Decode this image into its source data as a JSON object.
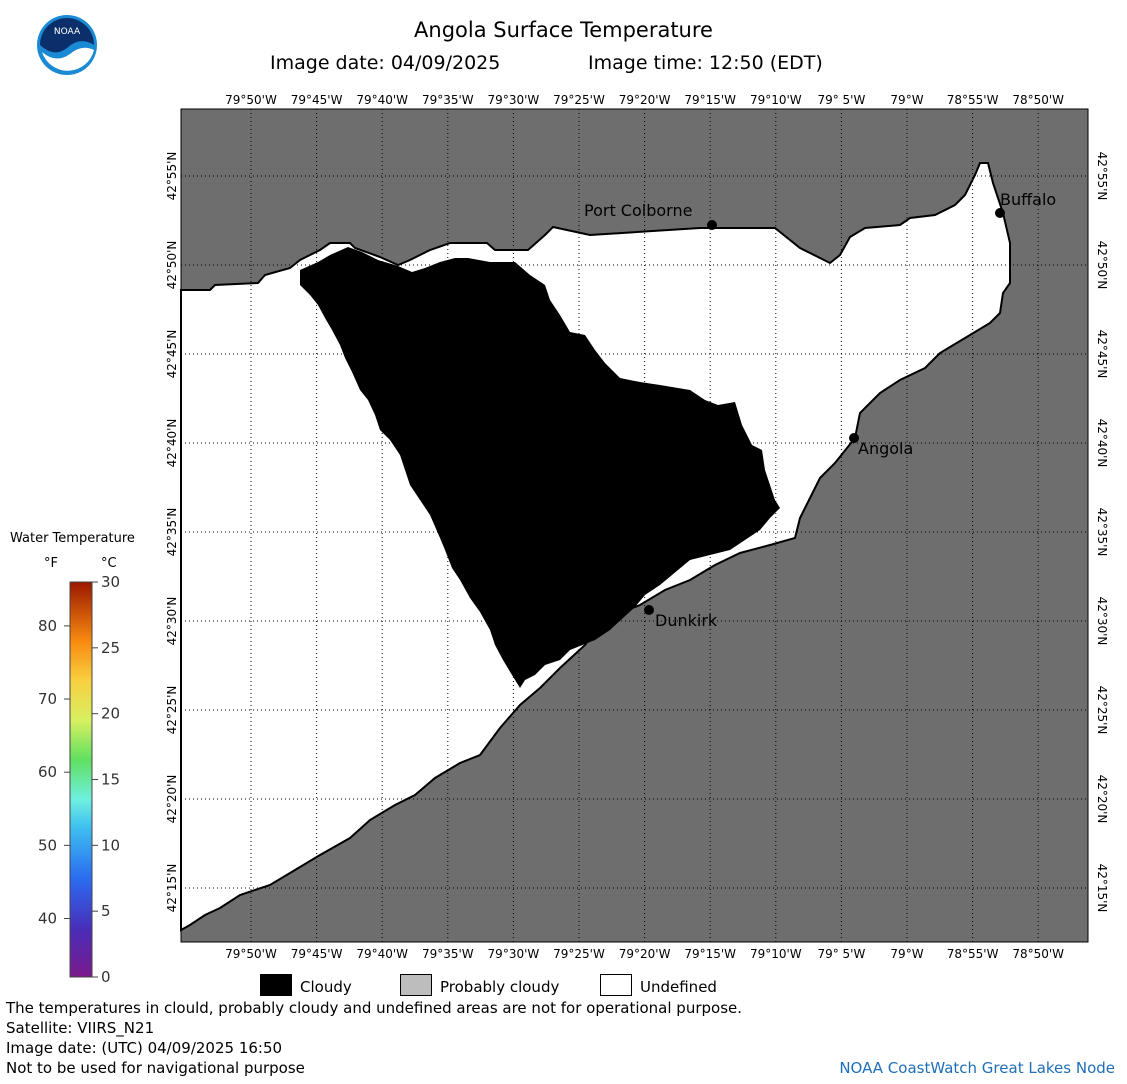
{
  "header": {
    "title": "Angola Surface Temperature",
    "image_date_label": "Image date: 04/09/2025",
    "image_time_label": "Image time: 12:50 (EDT)"
  },
  "logo": {
    "text": "NOAA",
    "icon": "noaa-logo"
  },
  "map": {
    "longitude_ticks": [
      "79°50'W",
      "79°45'W",
      "79°40'W",
      "79°35'W",
      "79°30'W",
      "79°25'W",
      "79°20'W",
      "79°15'W",
      "79°10'W",
      "79° 5'W",
      "79°W",
      "78°55'W",
      "78°50'W"
    ],
    "latitude_ticks": [
      "42°55'N",
      "42°50'N",
      "42°45'N",
      "42°40'N",
      "42°35'N",
      "42°30'N",
      "42°25'N",
      "42°20'N",
      "42°15'N"
    ],
    "cities": [
      {
        "name": "Port Colborne"
      },
      {
        "name": "Buffalo"
      },
      {
        "name": "Angola"
      },
      {
        "name": "Dunkirk"
      }
    ],
    "colors": {
      "land": "#6e6e6e",
      "cloudy": "#000000",
      "undefined": "#ffffff",
      "probably_cloudy": "#bdbdbd"
    }
  },
  "legend": {
    "title": "Water Temperature",
    "unit_f": "°F",
    "unit_c": "°C",
    "f_labels": [
      "80",
      "70",
      "60",
      "50",
      "40"
    ],
    "c_labels": [
      "30",
      "25",
      "20",
      "15",
      "10",
      "5",
      "0"
    ]
  },
  "key": [
    {
      "label": "Cloudy",
      "color": "#000000"
    },
    {
      "label": "Probably cloudy",
      "color": "#bdbdbd"
    },
    {
      "label": "Undefined",
      "color": "#ffffff"
    }
  ],
  "footer": {
    "disclaimer": "The temperatures in clould, probably cloudy and undefined areas are not for operational purpose.",
    "satellite": "Satellite: VIIRS_N21",
    "utc_date": "Image date: (UTC) 04/09/2025  16:50",
    "navigation": "Not to be used for navigational purpose",
    "credit": "NOAA CoastWatch Great Lakes Node"
  }
}
